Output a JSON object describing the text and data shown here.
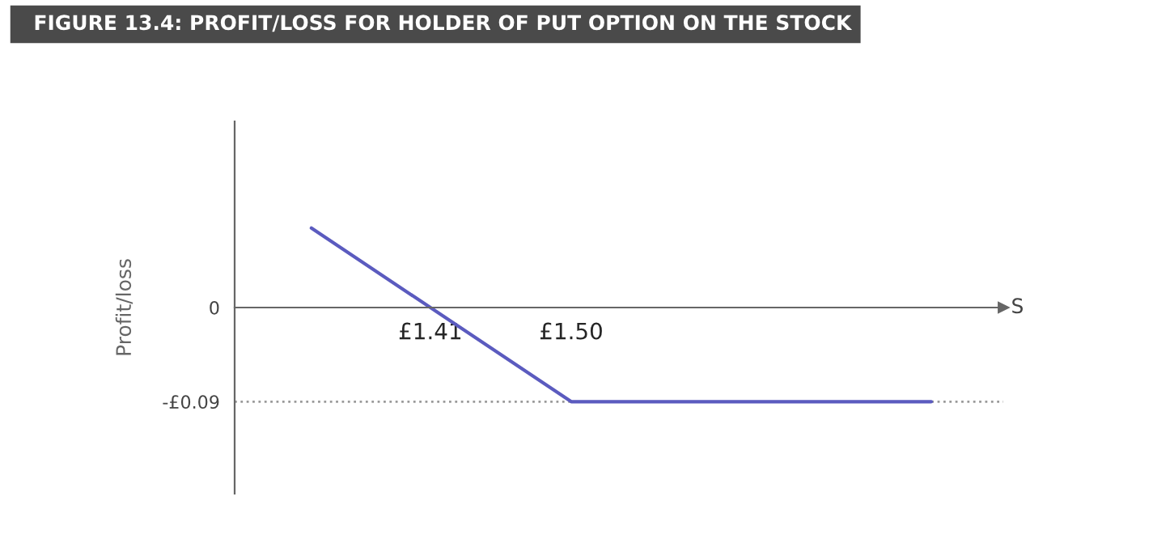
{
  "chart_data": {
    "type": "line",
    "title": "FIGURE 13.4: PROFIT/LOSS FOR HOLDER OF PUT OPTION ON THE STOCK",
    "x": [
      1.334,
      1.5,
      1.73
    ],
    "series": [
      {
        "color": "#5b5bbf",
        "values": [
          0.076,
          -0.09,
          -0.09
        ]
      }
    ],
    "xlabel": "S",
    "ylabel": "Profit/loss",
    "xlim": [
      1.285,
      1.776
    ],
    "ylim": [
      -0.178,
      0.178
    ],
    "xticks": [
      {
        "value": 1.41,
        "label": "£1.41"
      },
      {
        "value": 1.5,
        "label": "£1.50"
      }
    ],
    "yticks": [
      {
        "value": 0,
        "label": "0"
      },
      {
        "value": -0.09,
        "label": "-£0.09"
      }
    ],
    "ref_lines": [
      {
        "axis": "y",
        "value": -0.09,
        "color": "#999999",
        "line_style": "dotted"
      }
    ],
    "grid": false,
    "legend": false,
    "marker": "none",
    "line_style": "solid"
  }
}
